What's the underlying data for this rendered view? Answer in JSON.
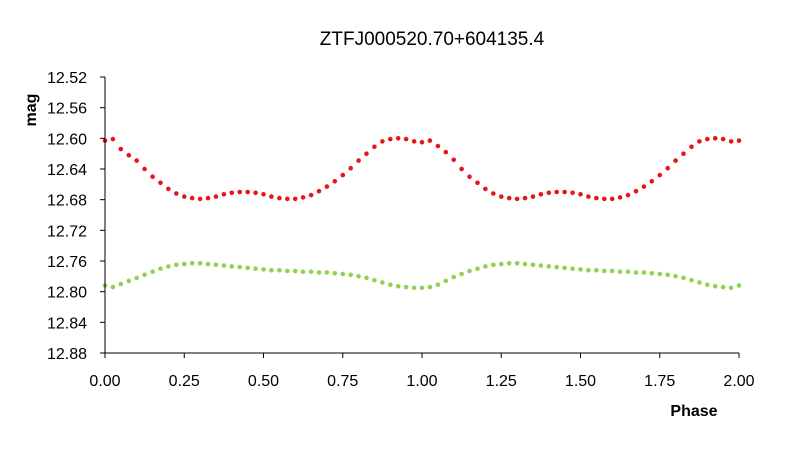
{
  "chart_data": {
    "type": "scatter",
    "title": "ZTFJ000520.70+604135.4",
    "xlabel": "Phase",
    "ylabel": "mag",
    "xlim": [
      0,
      2
    ],
    "ylim": [
      12.52,
      12.88
    ],
    "y_inverted": true,
    "xticks": [
      "0.00",
      "0.25",
      "0.50",
      "0.75",
      "1.00",
      "1.25",
      "1.50",
      "1.75",
      "2.00"
    ],
    "yticks": [
      "12.52",
      "12.56",
      "12.60",
      "12.64",
      "12.68",
      "12.72",
      "12.76",
      "12.80",
      "12.84",
      "12.88"
    ],
    "grid": false,
    "legend": "none",
    "series": [
      {
        "color": "#e8141b",
        "x": [
          0.0,
          0.025,
          0.05,
          0.075,
          0.1,
          0.125,
          0.15,
          0.175,
          0.2,
          0.225,
          0.25,
          0.275,
          0.3,
          0.325,
          0.35,
          0.375,
          0.4,
          0.425,
          0.45,
          0.475,
          0.5,
          0.525,
          0.55,
          0.575,
          0.6,
          0.625,
          0.65,
          0.675,
          0.7,
          0.725,
          0.75,
          0.775,
          0.8,
          0.825,
          0.85,
          0.875,
          0.9,
          0.925,
          0.95,
          0.975,
          1.0,
          1.025,
          1.05,
          1.075,
          1.1,
          1.125,
          1.15,
          1.175,
          1.2,
          1.225,
          1.25,
          1.275,
          1.3,
          1.325,
          1.35,
          1.375,
          1.4,
          1.425,
          1.45,
          1.475,
          1.5,
          1.525,
          1.55,
          1.575,
          1.6,
          1.625,
          1.65,
          1.675,
          1.7,
          1.725,
          1.75,
          1.775,
          1.8,
          1.825,
          1.85,
          1.875,
          1.9,
          1.925,
          1.95,
          1.975,
          2.0
        ],
        "y": [
          12.603,
          12.601,
          12.614,
          12.622,
          12.629,
          12.64,
          12.65,
          12.658,
          12.666,
          12.672,
          12.676,
          12.678,
          12.679,
          12.678,
          12.676,
          12.673,
          12.671,
          12.67,
          12.67,
          12.671,
          12.673,
          12.676,
          12.678,
          12.679,
          12.679,
          12.677,
          12.674,
          12.669,
          12.663,
          12.656,
          12.648,
          12.639,
          12.629,
          12.62,
          12.611,
          12.604,
          12.601,
          12.6,
          12.601,
          12.604,
          12.605,
          12.603,
          12.61,
          12.618,
          12.628,
          12.64,
          12.65,
          12.658,
          12.666,
          12.672,
          12.676,
          12.678,
          12.679,
          12.678,
          12.676,
          12.673,
          12.671,
          12.67,
          12.67,
          12.671,
          12.673,
          12.676,
          12.678,
          12.679,
          12.679,
          12.677,
          12.674,
          12.669,
          12.663,
          12.656,
          12.648,
          12.639,
          12.629,
          12.62,
          12.611,
          12.604,
          12.601,
          12.6,
          12.601,
          12.604,
          12.603
        ]
      },
      {
        "color": "#92d050",
        "x": [
          0.0,
          0.025,
          0.05,
          0.075,
          0.1,
          0.125,
          0.15,
          0.175,
          0.2,
          0.225,
          0.25,
          0.275,
          0.3,
          0.325,
          0.35,
          0.375,
          0.4,
          0.425,
          0.45,
          0.475,
          0.5,
          0.525,
          0.55,
          0.575,
          0.6,
          0.625,
          0.65,
          0.675,
          0.7,
          0.725,
          0.75,
          0.775,
          0.8,
          0.825,
          0.85,
          0.875,
          0.9,
          0.925,
          0.95,
          0.975,
          1.0,
          1.025,
          1.05,
          1.075,
          1.1,
          1.125,
          1.15,
          1.175,
          1.2,
          1.225,
          1.25,
          1.275,
          1.3,
          1.325,
          1.35,
          1.375,
          1.4,
          1.425,
          1.45,
          1.475,
          1.5,
          1.525,
          1.55,
          1.575,
          1.6,
          1.625,
          1.65,
          1.675,
          1.7,
          1.725,
          1.75,
          1.775,
          1.8,
          1.825,
          1.85,
          1.875,
          1.9,
          1.925,
          1.95,
          1.975,
          2.0
        ],
        "y": [
          12.792,
          12.794,
          12.79,
          12.786,
          12.782,
          12.778,
          12.774,
          12.77,
          12.767,
          12.765,
          12.764,
          12.763,
          12.763,
          12.764,
          12.765,
          12.766,
          12.767,
          12.768,
          12.769,
          12.77,
          12.771,
          12.772,
          12.772,
          12.773,
          12.773,
          12.774,
          12.774,
          12.775,
          12.775,
          12.776,
          12.777,
          12.778,
          12.78,
          12.782,
          12.785,
          12.788,
          12.791,
          12.793,
          12.794,
          12.795,
          12.795,
          12.794,
          12.791,
          12.786,
          12.781,
          12.777,
          12.773,
          12.77,
          12.767,
          12.765,
          12.764,
          12.763,
          12.763,
          12.764,
          12.765,
          12.766,
          12.767,
          12.768,
          12.769,
          12.77,
          12.771,
          12.772,
          12.772,
          12.773,
          12.773,
          12.774,
          12.774,
          12.775,
          12.775,
          12.776,
          12.777,
          12.778,
          12.78,
          12.782,
          12.785,
          12.788,
          12.791,
          12.793,
          12.794,
          12.795,
          12.792
        ]
      }
    ]
  }
}
